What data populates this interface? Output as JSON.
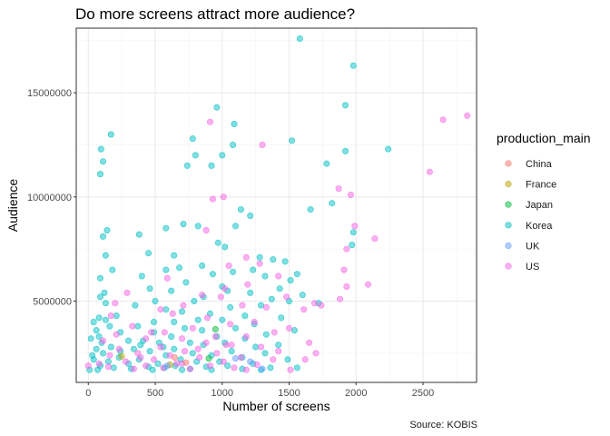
{
  "chart_data": {
    "type": "scatter",
    "title": "Do more screens attract more audience?",
    "xlabel": "Number of screens",
    "ylabel": "Audience",
    "caption": "Source: KOBIS",
    "xlim": [
      -90,
      2900
    ],
    "ylim": [
      1100000,
      18100000
    ],
    "x_ticks": [
      0,
      500,
      1000,
      1500,
      2000,
      2500
    ],
    "y_ticks": [
      5000000,
      10000000,
      15000000
    ],
    "grid": true,
    "legend": {
      "title": "production_main",
      "position": "right"
    },
    "colors": {
      "China": "#F8766D",
      "France": "#B79F00",
      "Japan": "#00BA38",
      "Korea": "#00BFC4",
      "UK": "#619CFF",
      "US": "#F564E3"
    },
    "series": [
      {
        "name": "China",
        "points": [
          [
            645,
            2300000
          ],
          [
            730,
            2050000
          ]
        ]
      },
      {
        "name": "France",
        "points": [
          [
            250,
            2350000
          ],
          [
            610,
            1950000
          ]
        ]
      },
      {
        "name": "Japan",
        "points": [
          [
            950,
            3650000
          ],
          [
            900,
            2250000
          ]
        ]
      },
      {
        "name": "Korea",
        "points": [
          [
            1580,
            17600000
          ],
          [
            1980,
            16300000
          ],
          [
            960,
            14300000
          ],
          [
            1920,
            14400000
          ],
          [
            1090,
            13500000
          ],
          [
            170,
            13000000
          ],
          [
            780,
            12800000
          ],
          [
            1520,
            12700000
          ],
          [
            1080,
            12500000
          ],
          [
            95,
            12300000
          ],
          [
            2240,
            12300000
          ],
          [
            1920,
            12200000
          ],
          [
            800,
            12000000
          ],
          [
            1000,
            12000000
          ],
          [
            110,
            11700000
          ],
          [
            740,
            11500000
          ],
          [
            920,
            11500000
          ],
          [
            1780,
            11600000
          ],
          [
            90,
            11100000
          ],
          [
            1820,
            9700000
          ],
          [
            1660,
            9400000
          ],
          [
            1140,
            9400000
          ],
          [
            1210,
            9100000
          ],
          [
            140,
            8400000
          ],
          [
            1980,
            8300000
          ],
          [
            380,
            8200000
          ],
          [
            580,
            8500000
          ],
          [
            710,
            8700000
          ],
          [
            820,
            8600000
          ],
          [
            1100,
            8600000
          ],
          [
            110,
            8100000
          ],
          [
            1970,
            7700000
          ],
          [
            970,
            7800000
          ],
          [
            1020,
            7600000
          ],
          [
            450,
            7300000
          ],
          [
            640,
            7200000
          ],
          [
            130,
            7200000
          ],
          [
            1280,
            7100000
          ],
          [
            1380,
            7000000
          ],
          [
            1470,
            6900000
          ],
          [
            850,
            6700000
          ],
          [
            1230,
            6500000
          ],
          [
            680,
            6600000
          ],
          [
            580,
            6500000
          ],
          [
            180,
            6500000
          ],
          [
            1080,
            6400000
          ],
          [
            930,
            6300000
          ],
          [
            1560,
            6300000
          ],
          [
            1320,
            6200000
          ],
          [
            90,
            6100000
          ],
          [
            400,
            6200000
          ],
          [
            1510,
            6000000
          ],
          [
            730,
            5900000
          ],
          [
            1000,
            5700000
          ],
          [
            1430,
            5600000
          ],
          [
            1210,
            5400000
          ],
          [
            1040,
            5500000
          ],
          [
            460,
            5600000
          ],
          [
            620,
            5500000
          ],
          [
            120,
            5400000
          ],
          [
            1600,
            5300000
          ],
          [
            860,
            5200000
          ],
          [
            1370,
            5100000
          ],
          [
            1500,
            5000000
          ],
          [
            90,
            5200000
          ],
          [
            500,
            5000000
          ],
          [
            790,
            5000000
          ],
          [
            1720,
            4900000
          ],
          [
            130,
            4900000
          ],
          [
            350,
            4800000
          ],
          [
            1290,
            4800000
          ],
          [
            1060,
            4700000
          ],
          [
            580,
            4600000
          ],
          [
            700,
            4500000
          ],
          [
            910,
            4400000
          ],
          [
            1170,
            4300000
          ],
          [
            40,
            4000000
          ],
          [
            80,
            4200000
          ],
          [
            130,
            4100000
          ],
          [
            210,
            4300000
          ],
          [
            1440,
            4200000
          ],
          [
            820,
            4100000
          ],
          [
            490,
            4000000
          ],
          [
            1000,
            4100000
          ],
          [
            640,
            4000000
          ],
          [
            1240,
            3900000
          ],
          [
            160,
            3800000
          ],
          [
            370,
            3800000
          ],
          [
            720,
            3700000
          ],
          [
            1100,
            3700000
          ],
          [
            1540,
            3600000
          ],
          [
            60,
            3600000
          ],
          [
            850,
            3600000
          ],
          [
            240,
            3500000
          ],
          [
            490,
            3500000
          ],
          [
            1330,
            3400000
          ],
          [
            960,
            3300000
          ],
          [
            80,
            3300000
          ],
          [
            620,
            3300000
          ],
          [
            1170,
            3200000
          ],
          [
            20,
            3200000
          ],
          [
            300,
            3100000
          ],
          [
            410,
            3100000
          ],
          [
            760,
            3000000
          ],
          [
            100,
            3000000
          ],
          [
            530,
            3000000
          ],
          [
            1020,
            3000000
          ],
          [
            1420,
            2900000
          ],
          [
            860,
            2900000
          ],
          [
            170,
            2800000
          ],
          [
            1250,
            2800000
          ],
          [
            340,
            2700000
          ],
          [
            640,
            2700000
          ],
          [
            1070,
            2600000
          ],
          [
            60,
            2700000
          ],
          [
            460,
            2600000
          ],
          [
            110,
            2500000
          ],
          [
            780,
            2500000
          ],
          [
            1320,
            2500000
          ],
          [
            920,
            2400000
          ],
          [
            580,
            2400000
          ],
          [
            230,
            2300000
          ],
          [
            1150,
            2300000
          ],
          [
            1490,
            2200000
          ],
          [
            690,
            2200000
          ],
          [
            40,
            2200000
          ],
          [
            380,
            2200000
          ],
          [
            980,
            2100000
          ],
          [
            810,
            2100000
          ],
          [
            150,
            2100000
          ],
          [
            520,
            2000000
          ],
          [
            1230,
            2000000
          ],
          [
            300,
            2000000
          ],
          [
            1040,
            1900000
          ],
          [
            650,
            1900000
          ],
          [
            90,
            1900000
          ],
          [
            880,
            1850000
          ],
          [
            450,
            1850000
          ],
          [
            1360,
            1800000
          ],
          [
            1560,
            1800000
          ],
          [
            190,
            1800000
          ],
          [
            570,
            1800000
          ],
          [
            760,
            1750000
          ],
          [
            320,
            1750000
          ],
          [
            1150,
            1750000
          ],
          [
            10,
            1700000
          ],
          [
            70,
            1700000
          ],
          [
            920,
            1700000
          ],
          [
            480,
            1700000
          ],
          [
            700,
            1700000
          ],
          [
            1290,
            1700000
          ],
          [
            240,
            2600000
          ],
          [
            560,
            2800000
          ],
          [
            30,
            2400000
          ],
          [
            390,
            2900000
          ]
        ]
      },
      {
        "name": "UK",
        "points": [
          [
            590,
            1900000
          ],
          [
            1100,
            2250000
          ],
          [
            1210,
            2100000
          ],
          [
            1300,
            1750000
          ]
        ]
      },
      {
        "name": "US",
        "points": [
          [
            2830,
            13900000
          ],
          [
            2650,
            13700000
          ],
          [
            910,
            13600000
          ],
          [
            1300,
            12500000
          ],
          [
            2550,
            11200000
          ],
          [
            1870,
            10400000
          ],
          [
            1960,
            10100000
          ],
          [
            930,
            9900000
          ],
          [
            1010,
            10000000
          ],
          [
            1990,
            8600000
          ],
          [
            880,
            8400000
          ],
          [
            2140,
            8000000
          ],
          [
            1930,
            7500000
          ],
          [
            1180,
            7100000
          ],
          [
            1280,
            6800000
          ],
          [
            1050,
            6700000
          ],
          [
            1910,
            6500000
          ],
          [
            1420,
            6200000
          ],
          [
            1190,
            5800000
          ],
          [
            2090,
            5800000
          ],
          [
            1930,
            5700000
          ],
          [
            590,
            6100000
          ],
          [
            290,
            5400000
          ],
          [
            1020,
            5600000
          ],
          [
            1480,
            5200000
          ],
          [
            1880,
            5100000
          ],
          [
            1740,
            4800000
          ],
          [
            200,
            4900000
          ],
          [
            1690,
            4900000
          ],
          [
            850,
            5300000
          ],
          [
            990,
            5200000
          ],
          [
            710,
            4800000
          ],
          [
            1330,
            4700000
          ],
          [
            1150,
            4800000
          ],
          [
            540,
            4600000
          ],
          [
            1610,
            4600000
          ],
          [
            630,
            4400000
          ],
          [
            170,
            4300000
          ],
          [
            890,
            4200000
          ],
          [
            1240,
            4000000
          ],
          [
            1060,
            3900000
          ],
          [
            330,
            3800000
          ],
          [
            780,
            3700000
          ],
          [
            1500,
            3700000
          ],
          [
            1390,
            3500000
          ],
          [
            570,
            3500000
          ],
          [
            210,
            3400000
          ],
          [
            950,
            3300000
          ],
          [
            1180,
            3300000
          ],
          [
            430,
            3200000
          ],
          [
            700,
            3200000
          ],
          [
            110,
            3100000
          ],
          [
            1650,
            3000000
          ],
          [
            880,
            3000000
          ],
          [
            1070,
            2900000
          ],
          [
            540,
            2800000
          ],
          [
            1290,
            2800000
          ],
          [
            230,
            2700000
          ],
          [
            720,
            2600000
          ],
          [
            1420,
            2600000
          ],
          [
            960,
            2500000
          ],
          [
            370,
            2500000
          ],
          [
            1700,
            2500000
          ],
          [
            160,
            2400000
          ],
          [
            610,
            2400000
          ],
          [
            1140,
            2300000
          ],
          [
            830,
            2300000
          ],
          [
            490,
            2200000
          ],
          [
            1380,
            2200000
          ],
          [
            1620,
            2200000
          ],
          [
            280,
            2100000
          ],
          [
            1010,
            2100000
          ],
          [
            700,
            2000000
          ],
          [
            80,
            2000000
          ],
          [
            1260,
            1950000
          ],
          [
            430,
            1900000
          ],
          [
            910,
            1900000
          ],
          [
            150,
            1850000
          ],
          [
            560,
            1800000
          ],
          [
            1090,
            1800000
          ],
          [
            340,
            1750000
          ],
          [
            760,
            1750000
          ],
          [
            0,
            1900000
          ],
          [
            1180,
            1700000
          ],
          [
            1510,
            1700000
          ],
          [
            660,
            2000000
          ],
          [
            390,
            2300000
          ],
          [
            820,
            2700000
          ],
          [
            1030,
            2900000
          ],
          [
            470,
            3500000
          ]
        ]
      }
    ]
  }
}
